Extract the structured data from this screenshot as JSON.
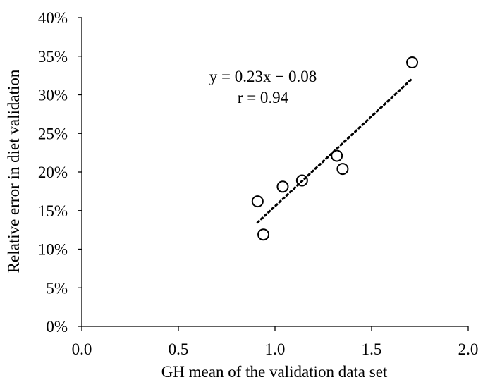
{
  "chart_data": {
    "type": "scatter",
    "title": "",
    "xlabel": "GH mean of the validation data set",
    "ylabel": "Relative error in diet validation",
    "xlim": [
      0.0,
      2.0
    ],
    "ylim": [
      0,
      40
    ],
    "x_ticks": [
      "0.0",
      "0.5",
      "1.0",
      "1.5",
      "2.0"
    ],
    "y_ticks": [
      "0%",
      "5%",
      "10%",
      "15%",
      "20%",
      "25%",
      "30%",
      "35%",
      "40%"
    ],
    "grid": false,
    "legend": "none",
    "series": [
      {
        "points": [
          {
            "x": 0.91,
            "y": 16.2
          },
          {
            "x": 0.94,
            "y": 11.9
          },
          {
            "x": 1.04,
            "y": 18.1
          },
          {
            "x": 1.14,
            "y": 18.9
          },
          {
            "x": 1.32,
            "y": 22.1
          },
          {
            "x": 1.35,
            "y": 20.4
          },
          {
            "x": 1.71,
            "y": 34.2
          }
        ],
        "marker": "open-circle",
        "color": "#000000"
      }
    ],
    "trendline": {
      "style": "dotted",
      "x_range": [
        0.91,
        1.71
      ]
    },
    "annotations": {
      "equation": "y = 0.23x − 0.08",
      "r_value": "r = 0.94"
    }
  }
}
